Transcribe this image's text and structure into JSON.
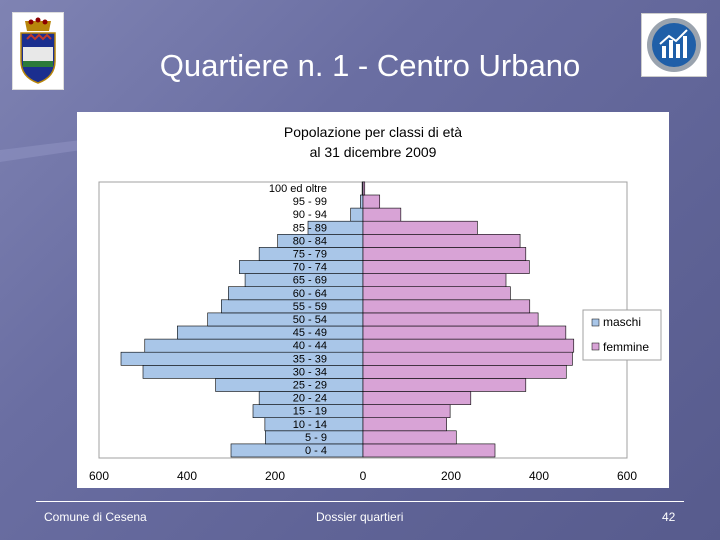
{
  "slide": {
    "title": "Quartiere n. 1 - Centro Urbano"
  },
  "footer": {
    "left": "Comune di Cesena",
    "center": "Dossier quartieri",
    "page": "42"
  },
  "chart_data": {
    "type": "bar",
    "orientation": "horizontal-pyramid",
    "title": "Popolazione per classi di età",
    "subtitle": "al 31 dicembre 2009",
    "categories": [
      "0 - 4",
      "5 - 9",
      "10 - 14",
      "15 - 19",
      "20 - 24",
      "25 - 29",
      "30 - 34",
      "35 - 39",
      "40 - 44",
      "45 - 49",
      "50 - 54",
      "55 - 59",
      "60 - 64",
      "65 - 69",
      "70 - 74",
      "75 - 79",
      "80 - 84",
      "85 - 89",
      "90 - 94",
      "95 - 99",
      "100 ed oltre"
    ],
    "series": [
      {
        "name": "maschi",
        "color": "#a9c6e8",
        "values": [
          300,
          222,
          223,
          250,
          236,
          335,
          500,
          550,
          496,
          422,
          353,
          322,
          306,
          268,
          281,
          236,
          194,
          125,
          28,
          6,
          2
        ]
      },
      {
        "name": "femmine",
        "color": "#d8a3d6",
        "values": [
          300,
          212,
          190,
          198,
          245,
          370,
          462,
          476,
          479,
          461,
          398,
          379,
          335,
          325,
          378,
          370,
          357,
          260,
          86,
          38,
          4
        ]
      }
    ],
    "xticks": [
      "600",
      "400",
      "200",
      "0",
      "200",
      "400",
      "600"
    ],
    "xlim": [
      -600,
      600
    ],
    "legend": "right",
    "grid": false
  }
}
